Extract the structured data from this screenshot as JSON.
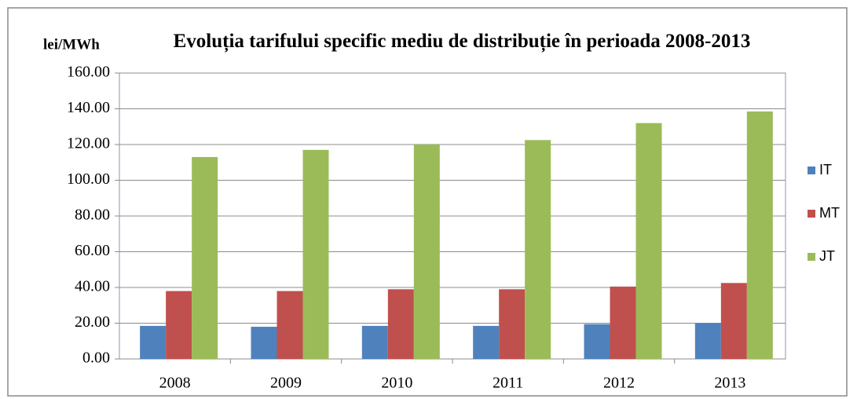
{
  "chart_data": {
    "type": "bar",
    "title": "Evoluția tarifului specific mediu de distribuție în perioada 2008-2013",
    "y_label": "lei/MWh",
    "categories": [
      "2008",
      "2009",
      "2010",
      "2011",
      "2012",
      "2013"
    ],
    "series": [
      {
        "name": "IT",
        "color": "#4f81bd",
        "values": [
          18.5,
          18,
          18.5,
          18.5,
          19.5,
          20
        ]
      },
      {
        "name": "MT",
        "color": "#c0504d",
        "values": [
          38,
          38,
          39,
          39,
          40.5,
          42.5
        ]
      },
      {
        "name": "JT",
        "color": "#9bbb59",
        "values": [
          113,
          117,
          120,
          122.5,
          132,
          138.5
        ]
      }
    ],
    "ylim": [
      0,
      160
    ],
    "yticks": [
      {
        "value": 0,
        "label": "0.00"
      },
      {
        "value": 20,
        "label": "20.00"
      },
      {
        "value": 40,
        "label": "40.00"
      },
      {
        "value": 60,
        "label": "60.00"
      },
      {
        "value": 80,
        "label": "80.00"
      },
      {
        "value": 100,
        "label": "100.00"
      },
      {
        "value": 120,
        "label": "120.00"
      },
      {
        "value": 140,
        "label": "140.00"
      },
      {
        "value": 160,
        "label": "160.00"
      }
    ],
    "grid": true,
    "legend": "right"
  }
}
